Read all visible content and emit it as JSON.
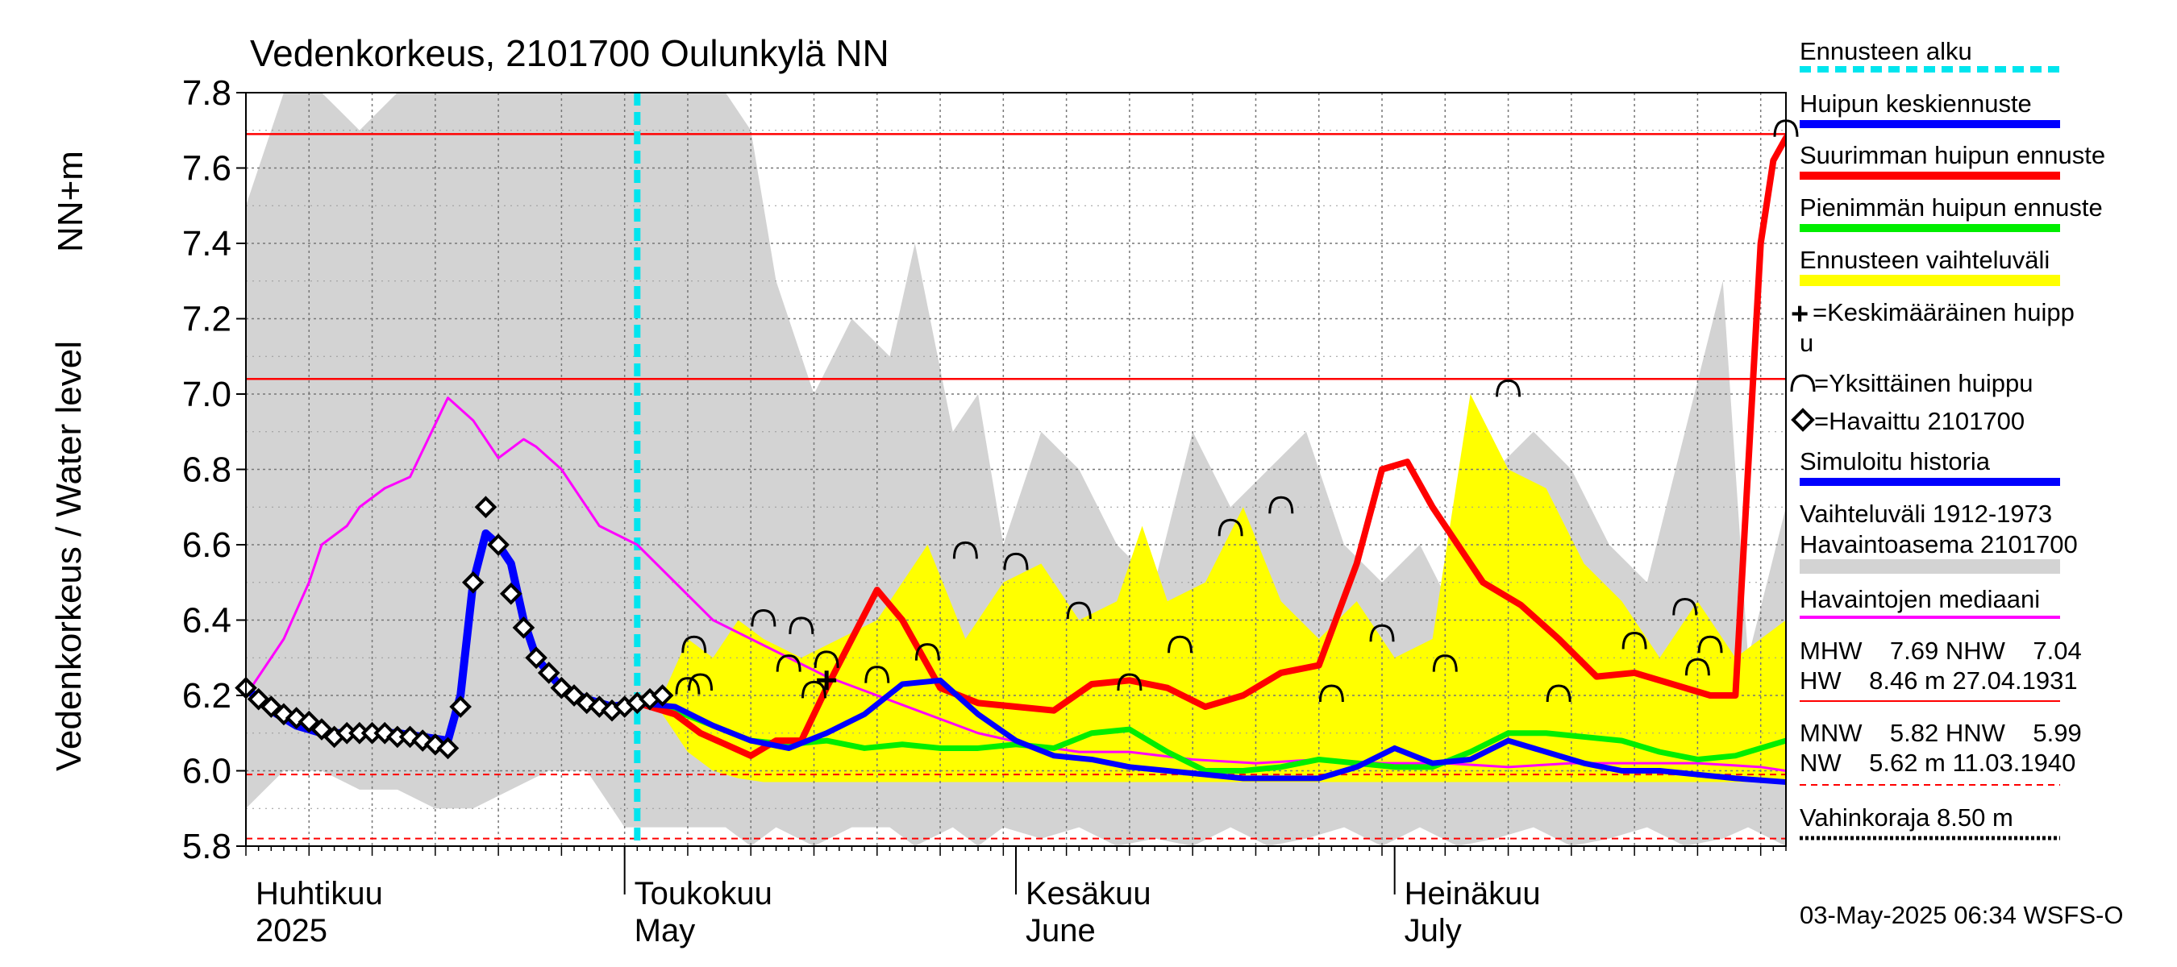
{
  "chart_data": {
    "type": "line",
    "title": "Vedenkorkeus, 2101700 Oulunkylä NN",
    "ylabel_unit": "NN+m",
    "ylabel": "Vedenkorkeus / Water level",
    "ylim": [
      5.8,
      7.8
    ],
    "xlim_days": [
      0,
      122
    ],
    "yticks": [
      5.8,
      6.0,
      6.2,
      6.4,
      6.6,
      6.8,
      7.0,
      7.2,
      7.4,
      7.6,
      7.8
    ],
    "months": [
      {
        "fi": "Huhtikuu",
        "en": "2025",
        "day": 0
      },
      {
        "fi": "Toukokuu",
        "en": "May",
        "day": 30
      },
      {
        "fi": "Kesäkuu",
        "en": "June",
        "day": 61
      },
      {
        "fi": "Heinäkuu",
        "en": "July",
        "day": 91
      }
    ],
    "forecast_start_day": 31,
    "reference_lines": {
      "MHW": 7.69,
      "NHW": 7.04,
      "MNW": 5.82,
      "HNW": 5.99
    },
    "band_history": {
      "x": [
        0,
        3,
        6,
        9,
        12,
        15,
        18,
        21,
        24,
        27,
        30,
        33,
        36,
        38,
        40,
        42,
        45,
        48,
        51,
        53,
        56,
        58,
        60,
        63,
        66,
        69,
        72,
        75,
        78,
        81,
        84,
        87,
        90,
        93,
        96,
        99,
        102,
        105,
        108,
        111,
        114,
        117,
        119,
        122
      ],
      "upper": [
        7.5,
        7.8,
        7.8,
        7.7,
        7.8,
        7.8,
        7.8,
        7.8,
        7.8,
        7.8,
        7.8,
        7.8,
        7.8,
        7.8,
        7.7,
        7.3,
        7.0,
        7.2,
        7.1,
        7.4,
        6.9,
        7.0,
        6.6,
        6.9,
        6.8,
        6.6,
        6.5,
        6.9,
        6.7,
        6.8,
        6.9,
        6.6,
        6.5,
        6.6,
        6.4,
        6.8,
        6.9,
        6.8,
        6.6,
        6.5,
        6.9,
        7.3,
        6.3,
        6.7
      ],
      "lower": [
        5.9,
        6.0,
        6.0,
        5.95,
        5.95,
        5.9,
        5.9,
        5.95,
        6.0,
        6.0,
        5.85,
        5.85,
        5.85,
        5.85,
        5.8,
        5.85,
        5.8,
        5.85,
        5.85,
        5.8,
        5.85,
        5.8,
        5.85,
        5.82,
        5.85,
        5.8,
        5.82,
        5.8,
        5.85,
        5.8,
        5.82,
        5.85,
        5.8,
        5.85,
        5.8,
        5.82,
        5.85,
        5.8,
        5.82,
        5.85,
        5.8,
        5.82,
        5.85,
        5.8
      ]
    },
    "band_forecast": {
      "x": [
        33,
        35,
        37,
        39,
        41,
        44,
        47,
        50,
        54,
        57,
        60,
        63,
        66,
        69,
        71,
        73,
        76,
        79,
        82,
        85,
        88,
        91,
        94,
        97,
        100,
        103,
        106,
        109,
        112,
        115,
        118,
        120,
        122
      ],
      "upper": [
        6.2,
        6.35,
        6.3,
        6.4,
        6.35,
        6.3,
        6.35,
        6.4,
        6.6,
        6.35,
        6.5,
        6.55,
        6.4,
        6.45,
        6.65,
        6.45,
        6.5,
        6.7,
        6.45,
        6.35,
        6.45,
        6.3,
        6.35,
        7.0,
        6.8,
        6.75,
        6.55,
        6.45,
        6.3,
        6.45,
        6.3,
        6.35,
        6.4
      ],
      "lower": [
        6.15,
        6.05,
        6.0,
        5.98,
        5.97,
        5.97,
        5.97,
        5.97,
        5.97,
        5.97,
        5.97,
        5.97,
        5.97,
        5.97,
        5.97,
        5.97,
        5.97,
        5.97,
        5.97,
        5.97,
        5.97,
        5.97,
        5.97,
        5.97,
        5.97,
        5.97,
        5.97,
        5.97,
        5.97,
        5.97,
        5.97,
        5.97,
        5.97
      ]
    },
    "series": [
      {
        "name": "Havaintojen mediaani",
        "color": "#ff00ff",
        "x": [
          0,
          2,
          3,
          5,
          6,
          8,
          9,
          11,
          13,
          16,
          18,
          20,
          22,
          23,
          25,
          28,
          31,
          34,
          37,
          40,
          43,
          46,
          50,
          54,
          58,
          62,
          66,
          70,
          75,
          80,
          85,
          90,
          95,
          100,
          105,
          110,
          115,
          120,
          122
        ],
        "y": [
          6.2,
          6.3,
          6.35,
          6.5,
          6.6,
          6.65,
          6.7,
          6.75,
          6.78,
          6.99,
          6.93,
          6.83,
          6.88,
          6.86,
          6.8,
          6.65,
          6.6,
          6.5,
          6.4,
          6.35,
          6.3,
          6.25,
          6.2,
          6.15,
          6.1,
          6.07,
          6.05,
          6.05,
          6.03,
          6.02,
          6.03,
          6.02,
          6.02,
          6.01,
          6.02,
          6.02,
          6.02,
          6.01,
          6.0
        ]
      },
      {
        "name": "Simuloitu historia",
        "color": "#0000ff",
        "x": [
          0,
          2,
          4,
          6,
          8,
          10,
          12,
          14,
          16,
          17,
          18,
          19,
          20,
          21,
          22,
          23,
          25,
          27,
          29,
          31
        ],
        "y": [
          6.22,
          6.16,
          6.12,
          6.1,
          6.1,
          6.1,
          6.1,
          6.09,
          6.08,
          6.2,
          6.5,
          6.63,
          6.6,
          6.55,
          6.4,
          6.3,
          6.22,
          6.19,
          6.17,
          6.18
        ]
      },
      {
        "name": "Huipun keskiennuste",
        "color": "#0000ff",
        "x": [
          31,
          34,
          37,
          40,
          43,
          46,
          49,
          52,
          55,
          58,
          61,
          64,
          67,
          70,
          73,
          76,
          79,
          82,
          85,
          88,
          91,
          94,
          97,
          100,
          103,
          106,
          109,
          112,
          115,
          118,
          122
        ],
        "y": [
          6.18,
          6.17,
          6.12,
          6.08,
          6.06,
          6.1,
          6.15,
          6.23,
          6.24,
          6.15,
          6.08,
          6.04,
          6.03,
          6.01,
          6.0,
          5.99,
          5.98,
          5.98,
          5.98,
          6.01,
          6.06,
          6.02,
          6.03,
          6.08,
          6.05,
          6.02,
          6.0,
          6.0,
          5.99,
          5.98,
          5.97
        ]
      },
      {
        "name": "Pienimmän huipun ennuste",
        "color": "#00ee00",
        "x": [
          31,
          34,
          37,
          40,
          43,
          46,
          49,
          52,
          55,
          58,
          61,
          64,
          67,
          70,
          73,
          76,
          79,
          82,
          85,
          88,
          91,
          94,
          97,
          100,
          103,
          106,
          109,
          112,
          115,
          118,
          122
        ],
        "y": [
          6.18,
          6.16,
          6.12,
          6.08,
          6.07,
          6.08,
          6.06,
          6.07,
          6.06,
          6.06,
          6.07,
          6.06,
          6.1,
          6.11,
          6.05,
          6.0,
          6.0,
          6.01,
          6.03,
          6.02,
          6.01,
          6.01,
          6.05,
          6.1,
          6.1,
          6.09,
          6.08,
          6.05,
          6.03,
          6.04,
          6.08
        ]
      },
      {
        "name": "Suurimman huipun ennuste",
        "color": "#ff0000",
        "x": [
          31,
          34,
          36,
          38,
          40,
          42,
          44,
          46,
          48,
          50,
          52,
          55,
          58,
          61,
          64,
          67,
          70,
          73,
          76,
          79,
          82,
          85,
          88,
          90,
          92,
          94,
          96,
          98,
          101,
          104,
          107,
          110,
          113,
          116,
          118,
          119,
          120,
          121,
          122
        ],
        "y": [
          6.18,
          6.15,
          6.1,
          6.07,
          6.04,
          6.08,
          6.08,
          6.22,
          6.35,
          6.48,
          6.4,
          6.22,
          6.18,
          6.17,
          6.16,
          6.23,
          6.24,
          6.22,
          6.17,
          6.2,
          6.26,
          6.28,
          6.55,
          6.8,
          6.82,
          6.7,
          6.6,
          6.5,
          6.44,
          6.35,
          6.25,
          6.26,
          6.23,
          6.2,
          6.2,
          6.8,
          7.4,
          7.62,
          7.68
        ]
      }
    ],
    "observed": {
      "name": "Havaittu 2101700",
      "x": [
        0,
        1,
        2,
        3,
        4,
        5,
        6,
        7,
        8,
        9,
        10,
        11,
        12,
        13,
        14,
        15,
        16,
        17,
        18,
        19,
        20,
        21,
        22,
        23,
        24,
        25,
        26,
        27,
        28,
        29,
        30,
        31,
        32,
        33
      ],
      "y": [
        6.22,
        6.19,
        6.17,
        6.15,
        6.14,
        6.13,
        6.11,
        6.09,
        6.1,
        6.1,
        6.1,
        6.1,
        6.09,
        6.09,
        6.08,
        6.07,
        6.06,
        6.17,
        6.5,
        6.7,
        6.6,
        6.47,
        6.38,
        6.3,
        6.26,
        6.22,
        6.2,
        6.18,
        6.17,
        6.16,
        6.17,
        6.18,
        6.19,
        6.2
      ]
    },
    "mean_peak": {
      "x": 46,
      "y": 6.24
    },
    "individual_peaks": {
      "x": [
        35,
        35.5,
        36,
        41,
        43,
        45,
        44,
        46,
        50,
        54,
        57,
        61,
        66,
        70,
        74,
        78,
        82,
        86,
        90,
        95,
        100,
        104,
        110,
        114,
        115,
        116,
        122
      ],
      "y": [
        6.22,
        6.33,
        6.23,
        6.4,
        6.28,
        6.21,
        6.38,
        6.29,
        6.25,
        6.31,
        6.58,
        6.55,
        6.42,
        6.23,
        6.33,
        6.64,
        6.7,
        6.2,
        6.36,
        6.28,
        7.01,
        6.2,
        6.34,
        6.43,
        6.27,
        6.33,
        7.7
      ]
    },
    "legend": {
      "forecast_start": "Ennusteen alku",
      "peak_mean": "Huipun keskiennuste",
      "peak_max": "Suurimman huipun ennuste",
      "peak_min": "Pienimmän huipun ennuste",
      "range": "Ennusteen vaihteluväli",
      "mean_peak_line1": "=Keskimääräinen huipp",
      "mean_peak_line2": "u",
      "single_peak": "=Yksittäinen huippu",
      "observed": "=Havaittu 2101700",
      "simulated": "Simuloitu historia",
      "hist_range_line1": "Vaihteluväli 1912-1973",
      "hist_range_line2": " Havaintoasema 2101700",
      "median": "Havaintojen mediaani",
      "stats_row1": "MHW    7.69 NHW    7.04",
      "stats_row2": "HW    8.46 m 27.04.1931",
      "stats_row3": "MNW    5.82 HNW    5.99",
      "stats_row4": "NW    5.62 m 11.03.1940",
      "damage_level": "Vahinkoraja 8.50 m"
    },
    "footer": "03-May-2025 06:34 WSFS-O",
    "colors": {
      "forecast_start": "#00e5ee",
      "peak_mean": "#0000ff",
      "peak_max": "#ff0000",
      "peak_min": "#00ee00",
      "range": "#ffff00",
      "history_band": "#d3d3d3",
      "median": "#ff00ff",
      "ref_line": "#ff0000"
    }
  }
}
